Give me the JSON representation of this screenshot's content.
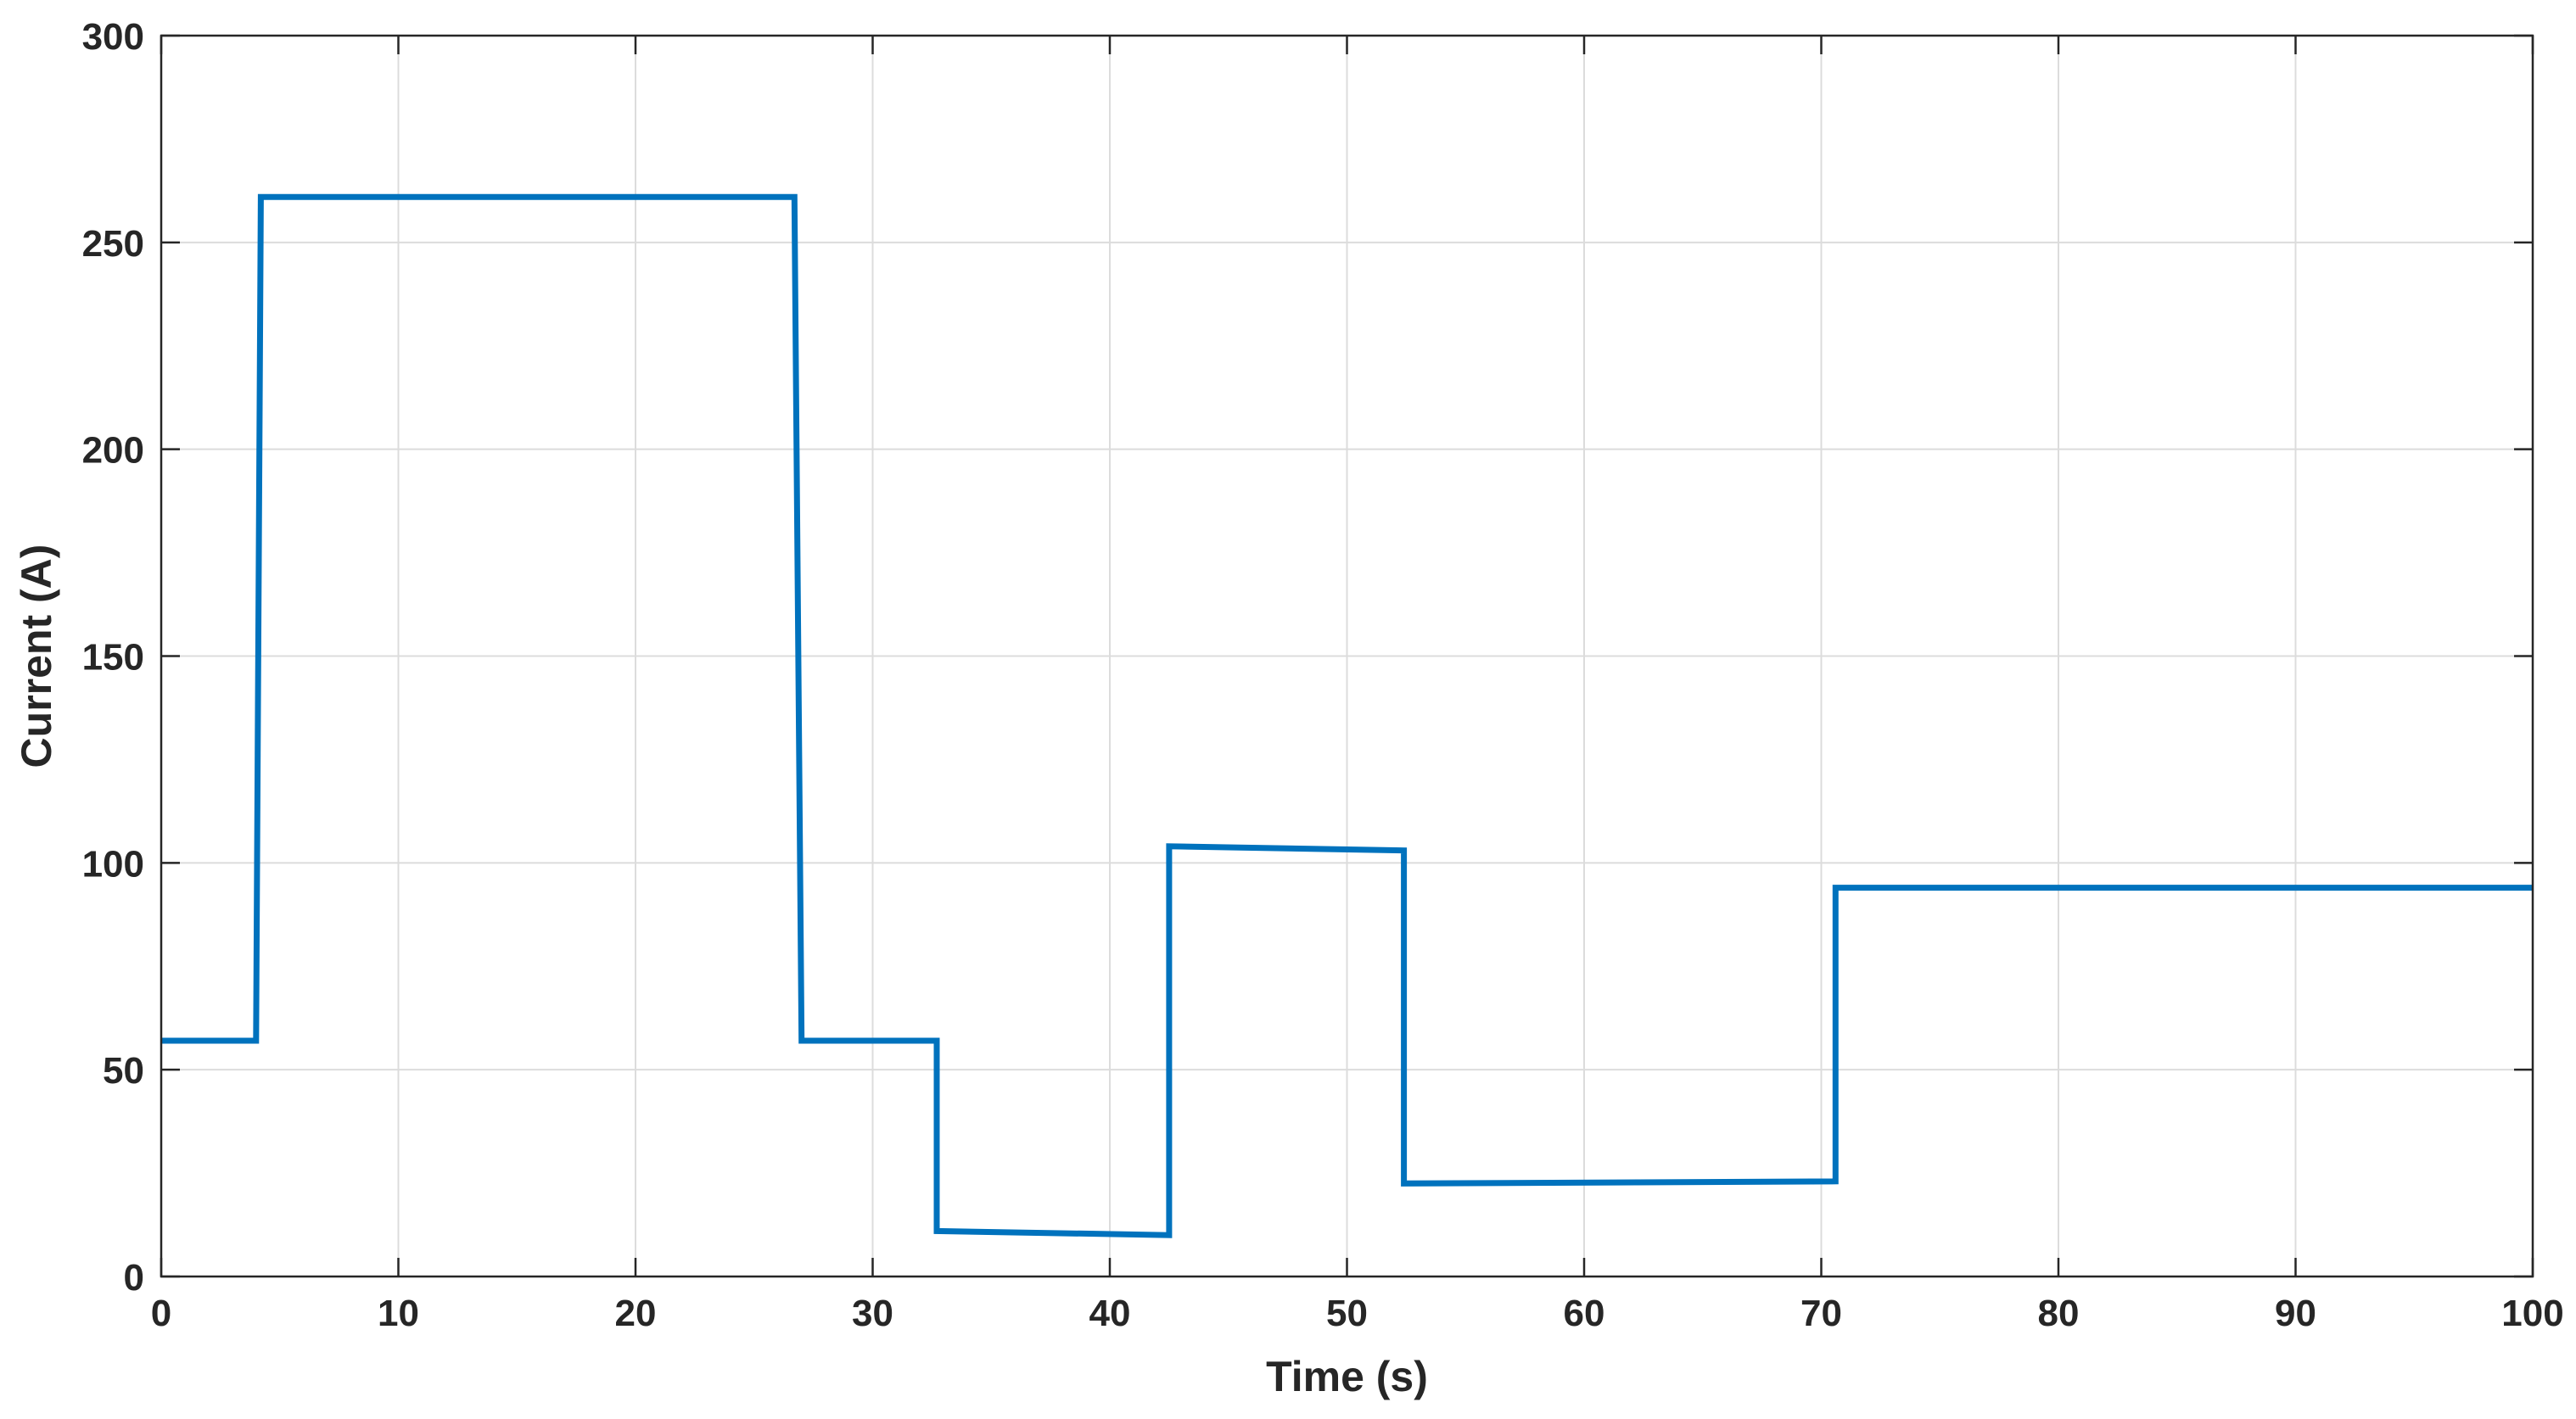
{
  "chart_data": {
    "type": "line",
    "title": "",
    "xlabel": "Time (s)",
    "ylabel": "Current (A)",
    "xlim": [
      0,
      100
    ],
    "ylim": [
      0,
      300
    ],
    "xticks": [
      0,
      10,
      20,
      30,
      40,
      50,
      60,
      70,
      80,
      90,
      100
    ],
    "yticks": [
      0,
      50,
      100,
      150,
      200,
      250,
      300
    ],
    "xtick_labels": [
      "0",
      "10",
      "20",
      "30",
      "40",
      "50",
      "60",
      "70",
      "80",
      "90",
      "100"
    ],
    "ytick_labels": [
      "0",
      "50",
      "100",
      "150",
      "200",
      "250",
      "300"
    ],
    "grid": true,
    "legend": "none",
    "series": [
      {
        "color": "#0072BD",
        "x": [
          0,
          4,
          4.2,
          26.7,
          27,
          32.7,
          32.7,
          42.5,
          42.5,
          52.4,
          52.4,
          70.6,
          70.6,
          100
        ],
        "y": [
          57,
          57,
          261,
          261,
          57,
          57,
          11,
          10,
          104,
          103,
          22.5,
          23,
          94,
          94
        ]
      }
    ]
  }
}
